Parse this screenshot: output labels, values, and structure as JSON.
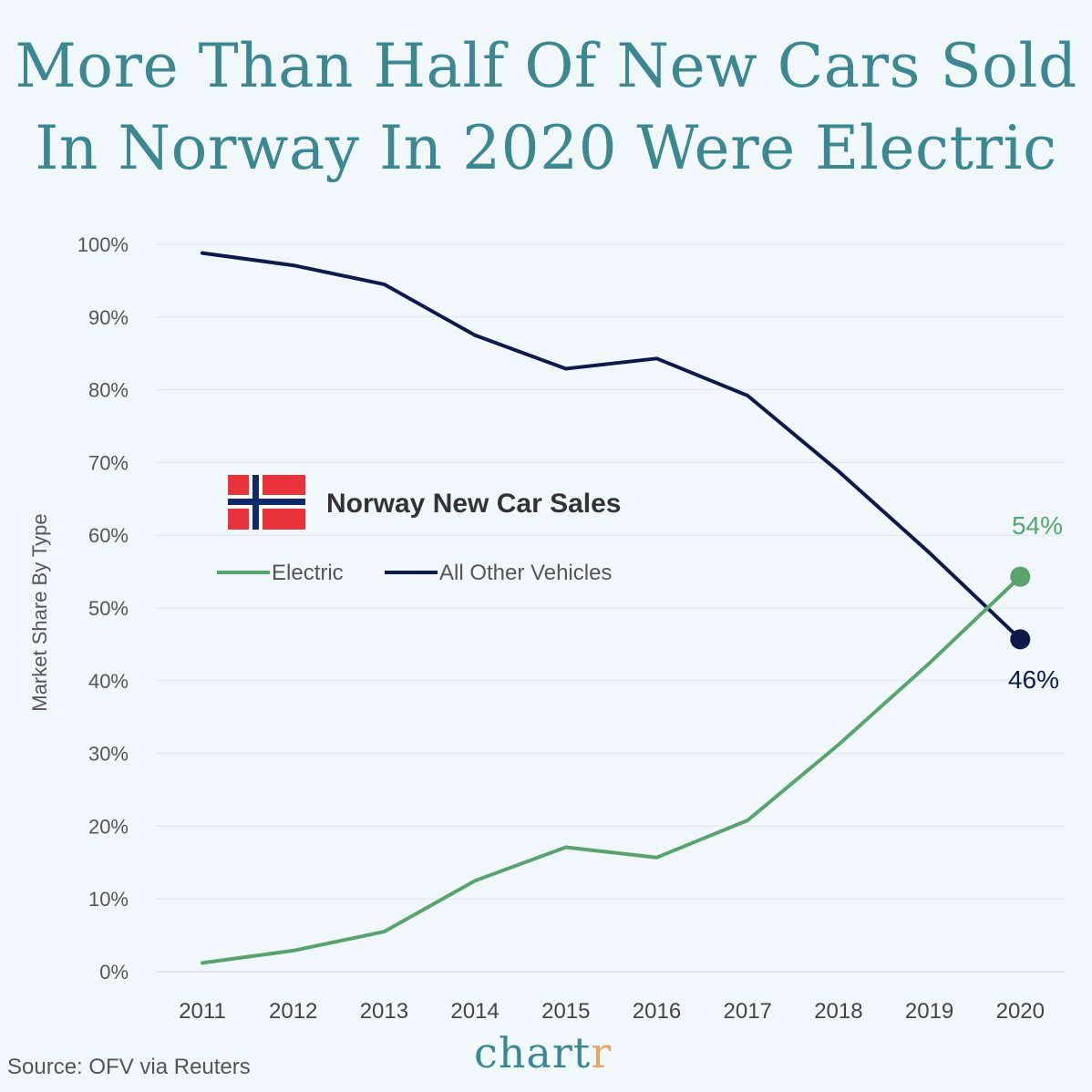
{
  "title_line1": "More Than Half Of New Cars Sold",
  "title_line2": "In Norway In 2020 Were Electric",
  "source": "Source: OFV via Reuters",
  "brand_main": "chart",
  "brand_accent": "r",
  "legend_title": "Norway New Car Sales",
  "colors": {
    "electric": "#5aa36e",
    "other": "#0f1a4a",
    "grid": "#dde6ec",
    "flag_red": "#e8333a",
    "flag_blue": "#0f2a6b"
  },
  "chart_data": {
    "type": "line",
    "ylabel": "Market Share By Type",
    "xlabel": "",
    "ylim": [
      0,
      100
    ],
    "y_ticks": [
      "0%",
      "10%",
      "20%",
      "30%",
      "40%",
      "50%",
      "60%",
      "70%",
      "80%",
      "90%",
      "100%"
    ],
    "categories": [
      "2011",
      "2012",
      "2013",
      "2014",
      "2015",
      "2016",
      "2017",
      "2018",
      "2019",
      "2020"
    ],
    "series": [
      {
        "name": "Electric",
        "values": [
          1.2,
          2.9,
          5.5,
          12.5,
          17.1,
          15.7,
          20.8,
          31.2,
          42.4,
          54.3
        ]
      },
      {
        "name": "All Other Vehicles",
        "values": [
          98.8,
          97.1,
          94.5,
          87.5,
          82.9,
          84.3,
          79.2,
          68.8,
          57.6,
          45.7
        ]
      }
    ],
    "end_labels": {
      "electric": "54%",
      "other": "46%"
    },
    "grid": true,
    "legend_position": "center-left"
  }
}
